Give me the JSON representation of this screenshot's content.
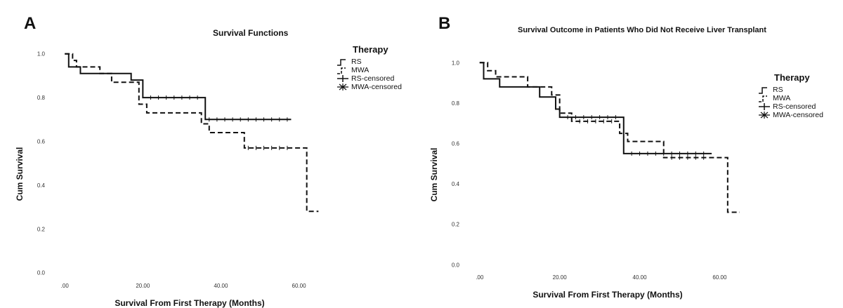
{
  "chart_data": [
    {
      "type": "line",
      "panel_letter": "A",
      "title": "Survival Functions",
      "xlabel": "Survival From First Therapy (Months)",
      "ylabel": "Cum Survival",
      "xlim": [
        -4,
        68
      ],
      "ylim": [
        -0.03,
        1.06
      ],
      "xticks": [
        0,
        20,
        40,
        60
      ],
      "xtick_labels": [
        ".00",
        "20.00",
        "40.00",
        "60.00"
      ],
      "yticks": [
        0,
        0.2,
        0.4,
        0.6,
        0.8,
        1.0
      ],
      "ytick_labels": [
        "0.0",
        "0.2",
        "0.4",
        "0.6",
        "0.8",
        "1.0"
      ],
      "grid": false,
      "legend": {
        "title": "Therapy",
        "position": "top-right",
        "items": [
          "RS",
          "MWA",
          "RS-censored",
          "MWA-censored"
        ]
      },
      "series": [
        {
          "name": "RS",
          "style": "solid",
          "x": [
            0,
            1,
            4,
            10,
            17,
            20,
            36,
            58
          ],
          "y": [
            1.0,
            0.94,
            0.91,
            0.91,
            0.88,
            0.8,
            0.7,
            0.7
          ],
          "censored_x": [
            22,
            24,
            26,
            28,
            30,
            32,
            34,
            37,
            39,
            41,
            43,
            45,
            47,
            49,
            51,
            53,
            55,
            57
          ]
        },
        {
          "name": "MWA",
          "style": "dashed",
          "x": [
            0,
            2,
            3,
            9,
            12,
            19,
            21,
            35,
            37,
            46,
            62,
            65
          ],
          "y": [
            1.0,
            0.97,
            0.94,
            0.91,
            0.87,
            0.77,
            0.73,
            0.68,
            0.64,
            0.57,
            0.28,
            0.28
          ],
          "censored_x": [
            47,
            49,
            51,
            53,
            55,
            57
          ]
        }
      ]
    },
    {
      "type": "line",
      "panel_letter": "B",
      "title": "Survival Outcome in Patients Who Did Not Receive Liver Transplant",
      "xlabel": "Survival From First Therapy (Months)",
      "ylabel": "Cum Survival",
      "xlim": [
        -4,
        68
      ],
      "ylim": [
        -0.03,
        1.06
      ],
      "xticks": [
        0,
        20,
        40,
        60
      ],
      "xtick_labels": [
        ".00",
        "20.00",
        "40.00",
        "60.00"
      ],
      "yticks": [
        0,
        0.2,
        0.4,
        0.6,
        0.8,
        1.0
      ],
      "ytick_labels": [
        "0.0",
        "0.2",
        "0.4",
        "0.6",
        "0.8",
        "1.0"
      ],
      "grid": false,
      "legend": {
        "title": "Therapy",
        "position": "top-right",
        "items": [
          "RS",
          "MWA",
          "RS-censored",
          "MWA-censored"
        ]
      },
      "series": [
        {
          "name": "RS",
          "style": "solid",
          "x": [
            0,
            1,
            5,
            15,
            19,
            20,
            36,
            58
          ],
          "y": [
            1.0,
            0.92,
            0.88,
            0.83,
            0.77,
            0.73,
            0.55,
            0.55
          ],
          "censored_x": [
            22,
            24,
            26,
            28,
            30,
            32,
            34,
            38,
            40,
            42,
            44,
            46,
            48,
            50,
            52,
            54,
            56
          ]
        },
        {
          "name": "MWA",
          "style": "dashed",
          "x": [
            0,
            2,
            4,
            12,
            18,
            20,
            23,
            35,
            37,
            46,
            62,
            65
          ],
          "y": [
            1.0,
            0.96,
            0.93,
            0.88,
            0.84,
            0.75,
            0.71,
            0.65,
            0.61,
            0.53,
            0.26,
            0.26
          ],
          "censored_x": [
            25,
            27,
            29,
            31,
            33,
            48,
            50,
            52,
            54,
            56
          ]
        }
      ]
    }
  ]
}
